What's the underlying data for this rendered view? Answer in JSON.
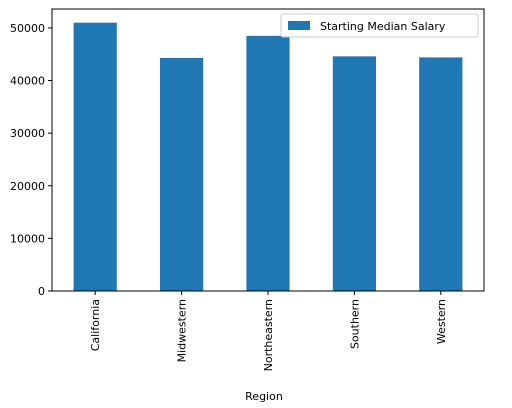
{
  "chart_data": {
    "type": "bar",
    "title": "",
    "xlabel": "Region",
    "ylabel": "",
    "categories": [
      "California",
      "Midwestern",
      "Northeastern",
      "Southern",
      "Western"
    ],
    "series": [
      {
        "name": "Starting Median Salary",
        "values": [
          51000,
          44300,
          48500,
          44600,
          44400
        ],
        "color": "#1f77b4"
      }
    ],
    "ylim": [
      0,
      53600
    ],
    "yticks": [
      0,
      10000,
      20000,
      30000,
      40000,
      50000
    ],
    "ytick_labels": [
      "0",
      "10000",
      "20000",
      "30000",
      "40000",
      "50000"
    ],
    "grid": false,
    "legend_position": "top-right"
  }
}
